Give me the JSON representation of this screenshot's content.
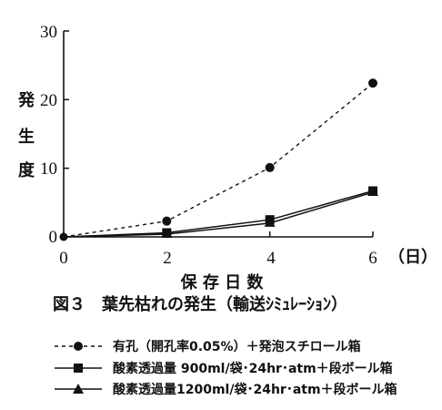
{
  "chart_data": {
    "type": "line",
    "x": [
      0,
      2,
      4,
      6
    ],
    "xticks": [
      "0",
      "2",
      "4",
      "6"
    ],
    "yticks": [
      "0",
      "10",
      "20",
      "30"
    ],
    "xunit": "（日）",
    "xlabel": "保 存 日 数",
    "ylabel": [
      "発",
      "生",
      "度"
    ],
    "caption": "図３　葉先枯れの発生（輸送ｼﾐｭﾚｰｼｮﾝ）",
    "xlim": [
      0,
      6
    ],
    "ylim": [
      0,
      30
    ],
    "grid": false,
    "legend_position": "below",
    "series": [
      {
        "name": "有孔（開孔率0.05%）＋発泡スチロール箱",
        "marker": "circle",
        "dash": true,
        "values": [
          0,
          2.3,
          10.1,
          22.4
        ]
      },
      {
        "name": "酸素透過量 900ml/袋･24hr･atm＋段ボール箱",
        "marker": "square",
        "dash": false,
        "values": [
          0,
          0.6,
          2.5,
          6.7
        ]
      },
      {
        "name": "酸素透過量1200ml/袋･24hr･atm＋段ボール箱",
        "marker": "triangle",
        "dash": false,
        "values": [
          0,
          0.4,
          2.0,
          6.5
        ]
      }
    ]
  }
}
